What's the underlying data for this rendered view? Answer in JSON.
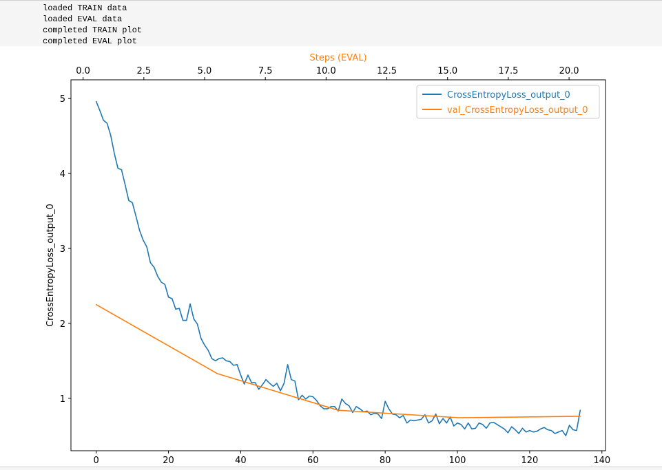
{
  "log": {
    "lines": [
      "loaded TRAIN data",
      "loaded EVAL data",
      "completed TRAIN plot",
      "completed EVAL plot"
    ]
  },
  "colors": {
    "train": "#1f77b4",
    "eval": "#ff7f0e",
    "axis": "#000000"
  },
  "chart_data": {
    "type": "line",
    "title": "",
    "xlabel": "",
    "ylabel": "CrossEntropyLoss_output_0",
    "x2label": "Steps (EVAL)",
    "xlim": [
      -7,
      141
    ],
    "x2lim": [
      -0.5,
      21.5
    ],
    "ylim": [
      0.3,
      5.25
    ],
    "xticks": [
      0,
      20,
      40,
      60,
      80,
      100,
      120,
      140
    ],
    "x2ticks": [
      "0.0",
      "2.5",
      "5.0",
      "7.5",
      "10.0",
      "12.5",
      "15.0",
      "17.5",
      "20.0"
    ],
    "yticks": [
      1,
      2,
      3,
      4,
      5
    ],
    "grid": false,
    "legend": "top-right",
    "series": [
      {
        "name": "CrossEntropyLoss_output_0",
        "axis": "bottom",
        "x": [
          0,
          1,
          2,
          3,
          4,
          5,
          6,
          7,
          8,
          9,
          10,
          11,
          12,
          13,
          14,
          15,
          16,
          17,
          18,
          19,
          20,
          21,
          22,
          23,
          24,
          25,
          26,
          27,
          28,
          29,
          30,
          31,
          32,
          33,
          34,
          35,
          36,
          37,
          38,
          39,
          40,
          41,
          42,
          43,
          44,
          45,
          46,
          47,
          48,
          49,
          50,
          51,
          52,
          53,
          54,
          55,
          56,
          57,
          58,
          59,
          60,
          61,
          62,
          63,
          64,
          65,
          66,
          67,
          68,
          69,
          70,
          71,
          72,
          73,
          74,
          75,
          76,
          77,
          78,
          79,
          80,
          81,
          82,
          83,
          84,
          85,
          86,
          87,
          88,
          89,
          90,
          91,
          92,
          93,
          94,
          95,
          96,
          97,
          98,
          99,
          100,
          101,
          102,
          103,
          104,
          105,
          106,
          107,
          108,
          109,
          110,
          111,
          112,
          113,
          114,
          115,
          116,
          117,
          118,
          119,
          120,
          121,
          122,
          123,
          124,
          125,
          126,
          127,
          128,
          129,
          130,
          131,
          132,
          133,
          134
        ],
        "values": [
          4.96,
          4.84,
          4.71,
          4.67,
          4.51,
          4.27,
          4.07,
          4.05,
          3.85,
          3.64,
          3.61,
          3.43,
          3.24,
          3.11,
          3.02,
          2.81,
          2.75,
          2.63,
          2.55,
          2.52,
          2.35,
          2.33,
          2.19,
          2.2,
          2.04,
          2.04,
          2.26,
          2.06,
          1.99,
          1.8,
          1.71,
          1.64,
          1.53,
          1.5,
          1.53,
          1.54,
          1.5,
          1.49,
          1.44,
          1.45,
          1.31,
          1.19,
          1.31,
          1.21,
          1.21,
          1.12,
          1.18,
          1.25,
          1.2,
          1.16,
          1.2,
          1.1,
          1.2,
          1.45,
          1.25,
          1.23,
          0.98,
          1.04,
          0.99,
          1.03,
          1.02,
          0.97,
          0.9,
          0.86,
          0.86,
          0.89,
          0.89,
          0.83,
          0.99,
          0.93,
          0.9,
          0.81,
          0.89,
          0.86,
          0.82,
          0.83,
          0.78,
          0.8,
          0.79,
          0.73,
          0.96,
          0.86,
          0.79,
          0.78,
          0.74,
          0.77,
          0.67,
          0.71,
          0.7,
          0.71,
          0.72,
          0.78,
          0.67,
          0.7,
          0.79,
          0.66,
          0.73,
          0.67,
          0.75,
          0.63,
          0.67,
          0.65,
          0.59,
          0.67,
          0.59,
          0.6,
          0.67,
          0.65,
          0.6,
          0.67,
          0.68,
          0.65,
          0.62,
          0.59,
          0.54,
          0.62,
          0.58,
          0.53,
          0.6,
          0.55,
          0.57,
          0.55,
          0.56,
          0.59,
          0.61,
          0.58,
          0.57,
          0.53,
          0.55,
          0.57,
          0.5,
          0.64,
          0.58,
          0.57,
          0.84
        ]
      },
      {
        "name": "val_CrossEntropyLoss_output_0",
        "axis": "bottom",
        "x": [
          0,
          33.5,
          67,
          100.5,
          134
        ],
        "values": [
          2.25,
          1.33,
          0.84,
          0.74,
          0.76
        ]
      }
    ]
  }
}
